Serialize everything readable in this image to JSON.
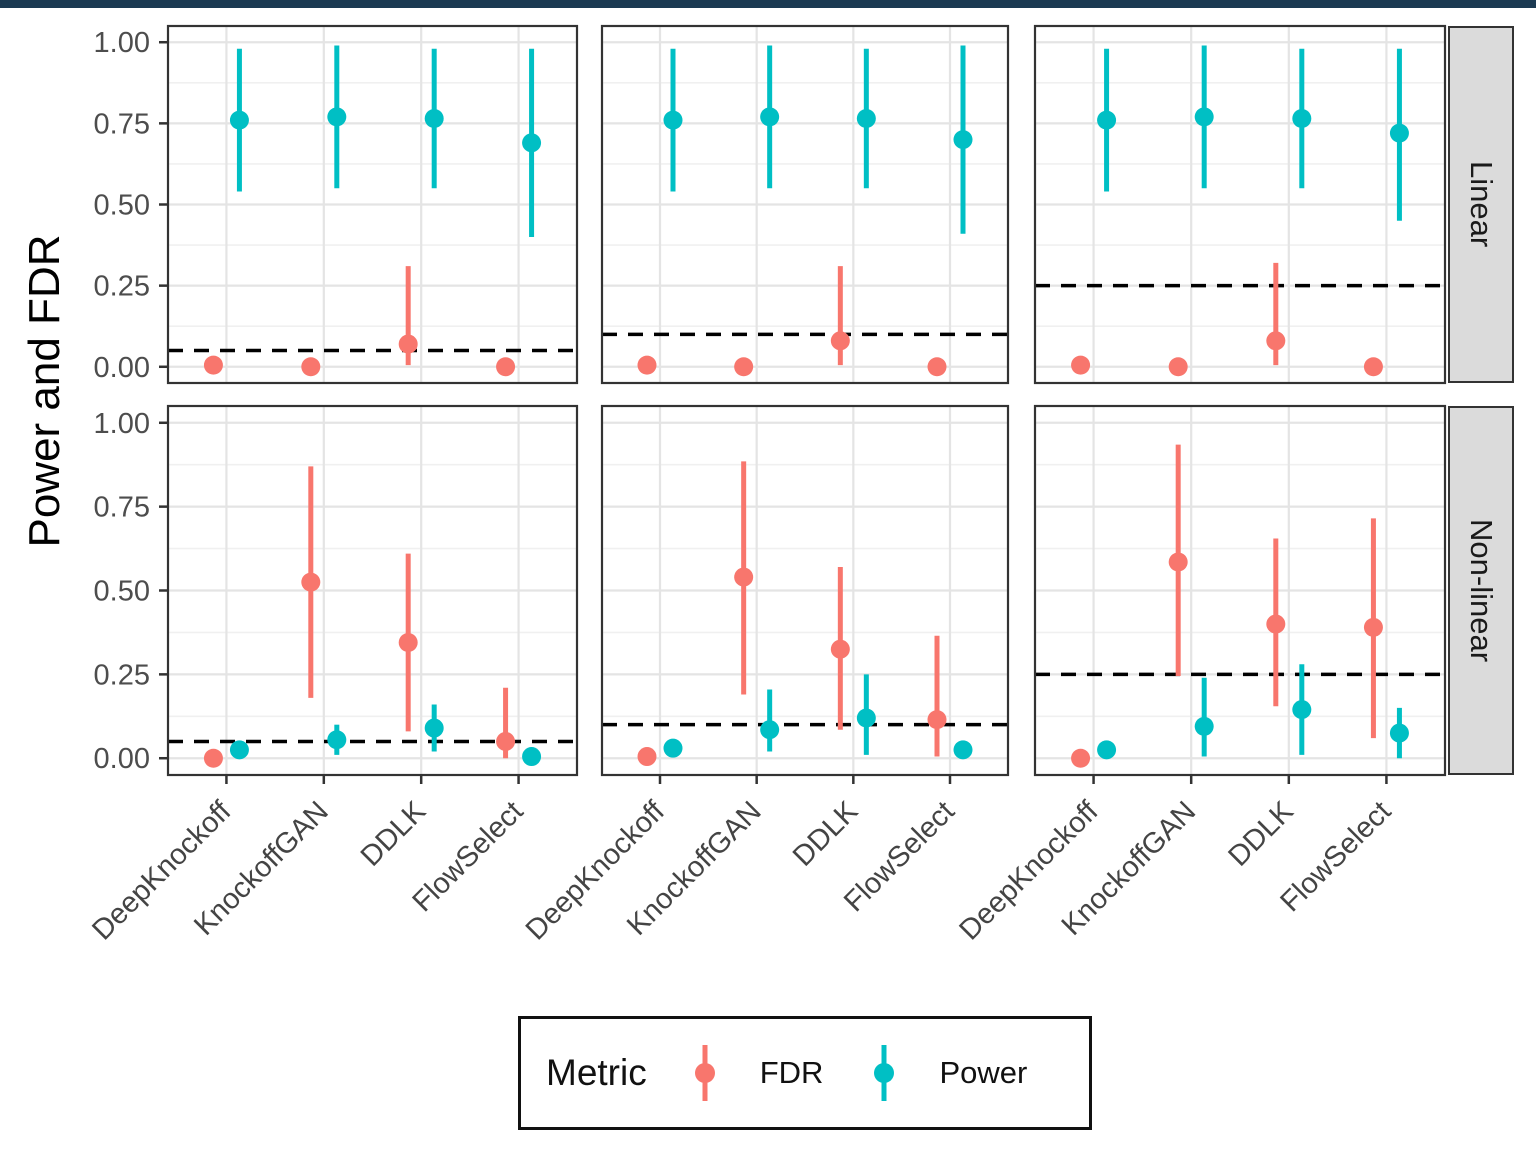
{
  "accent_bar": {
    "color": "#1B3A52"
  },
  "chart_data": {
    "type": "pointrange",
    "ylabel": "Power and FDR",
    "categories": [
      "DeepKnockoff",
      "KnockoffGAN",
      "DDLK",
      "FlowSelect"
    ],
    "yticks": [
      "0.00",
      "0.25",
      "0.50",
      "0.75",
      "1.00"
    ],
    "ytick_values": [
      0,
      0.25,
      0.5,
      0.75,
      1.0
    ],
    "ylim": [
      0,
      1
    ],
    "grid": "on",
    "facet_rows": [
      "Linear",
      "Non-linear"
    ],
    "facet_cols": 3,
    "colors": {
      "fdr": "#F8766D",
      "power": "#00BFC4",
      "panel_border": "#333333",
      "grid_major": "#E4E4E4",
      "grid_minor": "#F0F0F0",
      "axis_text": "#4D4D4D",
      "strip_fill": "#DBDBDB",
      "dashed_line": "#000000"
    },
    "legend": {
      "title": "Metric",
      "position": "bottom",
      "entries": [
        {
          "label": "FDR",
          "color": "#F8766D"
        },
        {
          "label": "Power",
          "color": "#00BFC4"
        }
      ]
    },
    "panels": [
      {
        "facet_row": "Linear",
        "facet_col": 0,
        "dashed_y": 0.05,
        "fdr": [
          [
            0.005,
            0.0,
            0.02
          ],
          [
            0.0,
            0.0,
            0.01
          ],
          [
            0.07,
            0.005,
            0.31
          ],
          [
            0.0,
            0.0,
            0.01
          ]
        ],
        "power": [
          [
            0.76,
            0.54,
            0.98
          ],
          [
            0.77,
            0.55,
            0.99
          ],
          [
            0.765,
            0.55,
            0.98
          ],
          [
            0.69,
            0.4,
            0.98
          ]
        ]
      },
      {
        "facet_row": "Linear",
        "facet_col": 1,
        "dashed_y": 0.1,
        "fdr": [
          [
            0.005,
            0.0,
            0.02
          ],
          [
            0.0,
            0.0,
            0.01
          ],
          [
            0.08,
            0.005,
            0.31
          ],
          [
            0.0,
            0.0,
            0.01
          ]
        ],
        "power": [
          [
            0.76,
            0.54,
            0.98
          ],
          [
            0.77,
            0.55,
            0.99
          ],
          [
            0.765,
            0.55,
            0.98
          ],
          [
            0.7,
            0.41,
            0.99
          ]
        ]
      },
      {
        "facet_row": "Linear",
        "facet_col": 2,
        "dashed_y": 0.25,
        "fdr": [
          [
            0.005,
            0.0,
            0.02
          ],
          [
            0.0,
            0.0,
            0.01
          ],
          [
            0.08,
            0.005,
            0.32
          ],
          [
            0.0,
            0.0,
            0.01
          ]
        ],
        "power": [
          [
            0.76,
            0.54,
            0.98
          ],
          [
            0.77,
            0.55,
            0.99
          ],
          [
            0.765,
            0.55,
            0.98
          ],
          [
            0.72,
            0.45,
            0.98
          ]
        ]
      },
      {
        "facet_row": "Non-linear",
        "facet_col": 0,
        "dashed_y": 0.05,
        "fdr": [
          [
            0.0,
            0.0,
            0.01
          ],
          [
            0.525,
            0.18,
            0.87
          ],
          [
            0.345,
            0.08,
            0.61
          ],
          [
            0.05,
            0.0,
            0.21
          ]
        ],
        "power": [
          [
            0.025,
            0.01,
            0.045
          ],
          [
            0.055,
            0.01,
            0.1
          ],
          [
            0.09,
            0.02,
            0.16
          ],
          [
            0.005,
            0.0,
            0.02
          ]
        ]
      },
      {
        "facet_row": "Non-linear",
        "facet_col": 1,
        "dashed_y": 0.1,
        "fdr": [
          [
            0.005,
            0.0,
            0.01
          ],
          [
            0.54,
            0.19,
            0.885
          ],
          [
            0.325,
            0.085,
            0.57
          ],
          [
            0.115,
            0.005,
            0.365
          ]
        ],
        "power": [
          [
            0.03,
            0.01,
            0.05
          ],
          [
            0.085,
            0.02,
            0.205
          ],
          [
            0.12,
            0.01,
            0.25
          ],
          [
            0.025,
            0.005,
            0.05
          ]
        ]
      },
      {
        "facet_row": "Non-linear",
        "facet_col": 2,
        "dashed_y": 0.25,
        "fdr": [
          [
            0.0,
            0.0,
            0.01
          ],
          [
            0.585,
            0.245,
            0.935
          ],
          [
            0.4,
            0.155,
            0.655
          ],
          [
            0.39,
            0.06,
            0.715
          ]
        ],
        "power": [
          [
            0.025,
            0.01,
            0.045
          ],
          [
            0.095,
            0.005,
            0.24
          ],
          [
            0.145,
            0.01,
            0.28
          ],
          [
            0.075,
            0.0,
            0.15
          ]
        ]
      }
    ]
  }
}
